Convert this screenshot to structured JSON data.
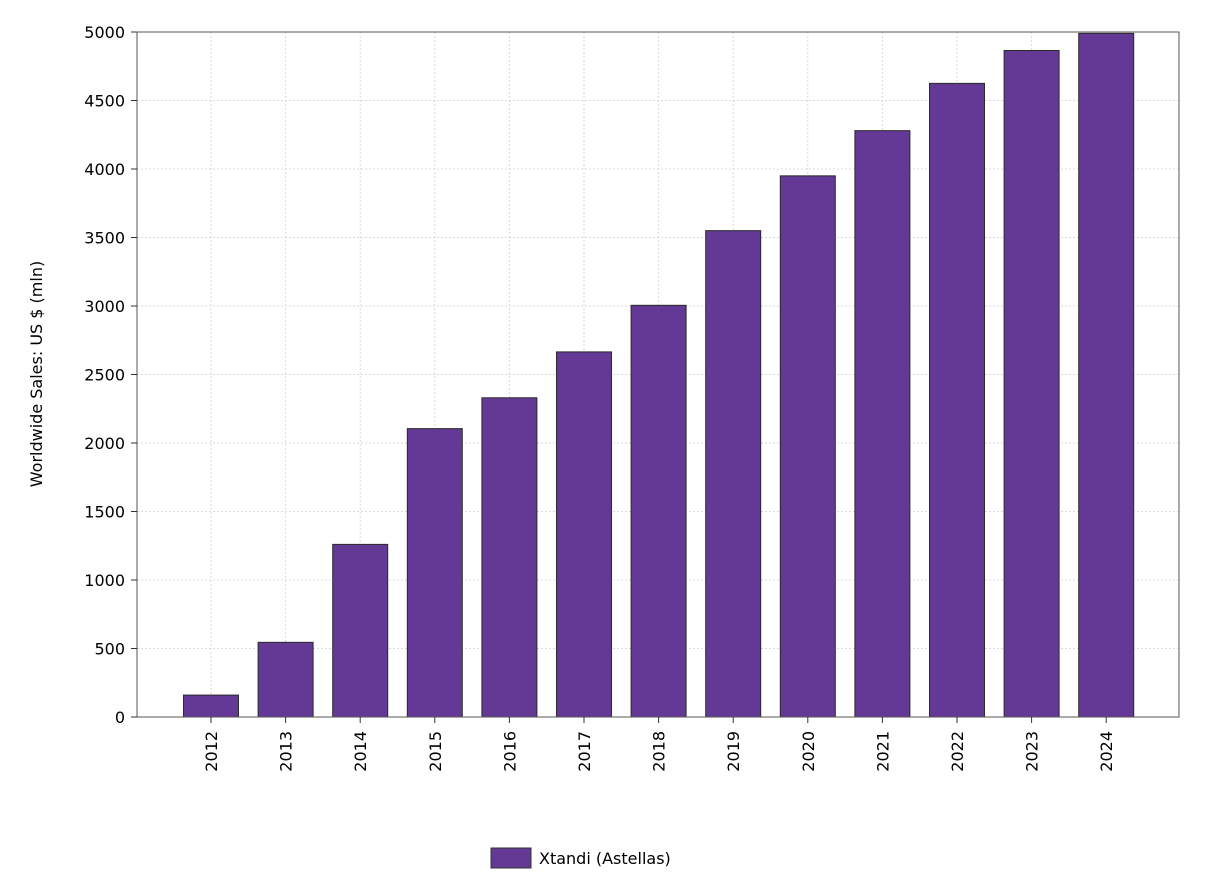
{
  "chart_data": {
    "type": "bar",
    "categories": [
      "2012",
      "2013",
      "2014",
      "2015",
      "2016",
      "2017",
      "2018",
      "2019",
      "2020",
      "2021",
      "2022",
      "2023",
      "2024"
    ],
    "series": [
      {
        "name": "Xtandi (Astellas)",
        "color": "#643996",
        "values": [
          160,
          545,
          1260,
          2105,
          2330,
          2665,
          3005,
          3550,
          3950,
          4280,
          4625,
          4865,
          4990
        ]
      }
    ],
    "title": "",
    "xlabel": "",
    "ylabel": "Worldwide Sales: US $ (mln)",
    "ylim": [
      0,
      5000
    ],
    "yticks": [
      0,
      500,
      1000,
      1500,
      2000,
      2500,
      3000,
      3500,
      4000,
      4500,
      5000
    ],
    "grid": true,
    "legend": "bottom-center"
  }
}
